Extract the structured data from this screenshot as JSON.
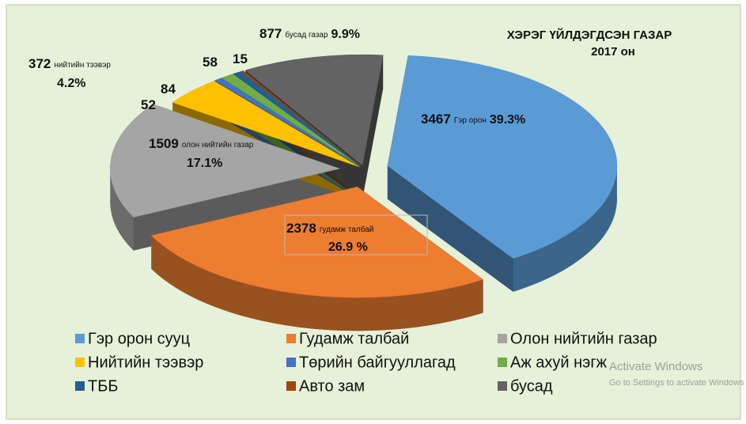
{
  "chart_data": {
    "type": "pie3d",
    "title": "ХЭРЭГ ҮЙЛДЭГДСЭН ГАЗАР",
    "subtitle": "2017 он",
    "categories": [
      "Гэр орон сууц",
      "Гудамж талбай",
      "Олон нийтийн газар",
      "Нийтийн тээвэр",
      "Төрийн байгууллагад",
      "Аж ахуй нэгж",
      "ТББ",
      "Авто зам",
      "бусад"
    ],
    "values": [
      3467,
      2378,
      1509,
      372,
      52,
      84,
      58,
      15,
      877
    ],
    "label_names": [
      "Гэр орон",
      "гудамж талбай",
      "олон нийтийн газар",
      "нийтийн тээвэр",
      null,
      null,
      null,
      null,
      "бусад газар"
    ],
    "percent_labels": [
      "39.3%",
      "26.9 %",
      "17.1%",
      "4.2%",
      null,
      null,
      null,
      null,
      "9.9%"
    ],
    "colors": [
      "#5b9bd5",
      "#ed7d31",
      "#a5a5a5",
      "#ffc000",
      "#4472c4",
      "#70ad47",
      "#255e91",
      "#9e480e",
      "#636363"
    ],
    "legend": "bottom",
    "watermark": [
      "Activate Windows",
      "Go to Settings to activate Windows"
    ]
  }
}
